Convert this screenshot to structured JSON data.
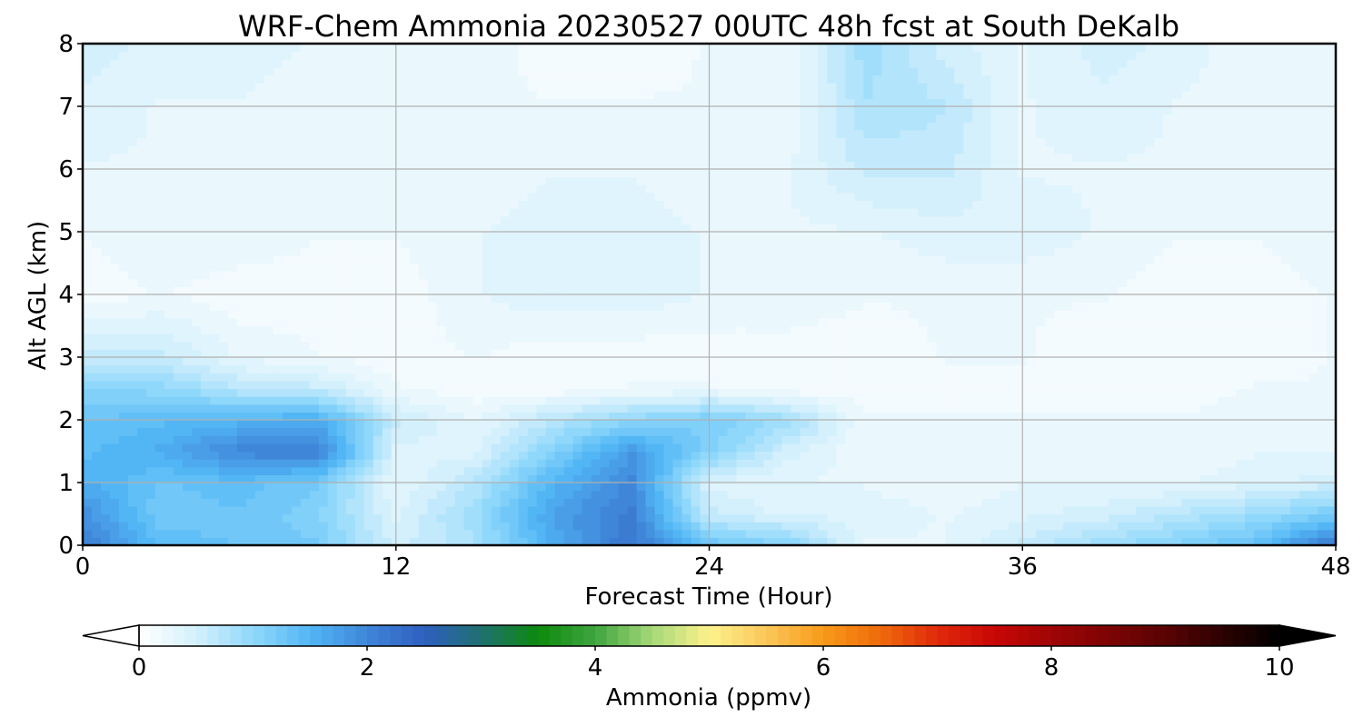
{
  "chart_data": {
    "type": "heatmap",
    "title": "WRF-Chem Ammonia  20230527 00UTC 48h fcst at South DeKalb",
    "xlabel": "Forecast Time (Hour)",
    "ylabel": "Alt AGL (km)",
    "xlim": [
      0,
      48
    ],
    "ylim": [
      0,
      8
    ],
    "xticks": [
      "0",
      "12",
      "24",
      "36",
      "48"
    ],
    "yticks": [
      "0",
      "1",
      "2",
      "3",
      "4",
      "5",
      "6",
      "7",
      "8"
    ],
    "grid": true,
    "colorbar": {
      "label": "Ammonia  (ppmv)",
      "range": [
        0,
        10
      ],
      "ticks": [
        "0",
        "2",
        "4",
        "6",
        "8",
        "10"
      ],
      "extend": "both",
      "stops": [
        {
          "v": 0,
          "c": "#ffffff"
        },
        {
          "v": 0.5,
          "c": "#d4f0fc"
        },
        {
          "v": 1.0,
          "c": "#8fd8fb"
        },
        {
          "v": 1.5,
          "c": "#52b6f5"
        },
        {
          "v": 2.0,
          "c": "#3f86d8"
        },
        {
          "v": 2.5,
          "c": "#2f5fc0"
        },
        {
          "v": 3.0,
          "c": "#1f7070"
        },
        {
          "v": 3.5,
          "c": "#0d8a0d"
        },
        {
          "v": 4.0,
          "c": "#3fa53f"
        },
        {
          "v": 4.5,
          "c": "#a6d879"
        },
        {
          "v": 5.0,
          "c": "#fdf28c"
        },
        {
          "v": 5.5,
          "c": "#fbc75a"
        },
        {
          "v": 6.0,
          "c": "#f89a1a"
        },
        {
          "v": 6.5,
          "c": "#ef6a0c"
        },
        {
          "v": 7.0,
          "c": "#e02a0a"
        },
        {
          "v": 7.5,
          "c": "#c90606"
        },
        {
          "v": 8.0,
          "c": "#a00505"
        },
        {
          "v": 9.0,
          "c": "#5a0303"
        },
        {
          "v": 10.0,
          "c": "#000000"
        }
      ],
      "under_color": "#ffffff",
      "over_color": "#000000"
    },
    "x": [
      0,
      3,
      6,
      9,
      12,
      15,
      18,
      21,
      24,
      27,
      30,
      33,
      36,
      39,
      42,
      45,
      48
    ],
    "y": [
      0,
      0.5,
      1,
      1.5,
      2,
      2.5,
      3,
      4,
      5,
      6,
      7,
      8
    ],
    "z": [
      [
        2.1,
        1.4,
        1.3,
        1.2,
        0.5,
        0.8,
        1.6,
        2.2,
        1.3,
        1.1,
        0.3,
        0.3,
        0.6,
        0.9,
        1.1,
        1.4,
        2.2
      ],
      [
        1.9,
        1.2,
        1.3,
        1.1,
        0.4,
        0.9,
        1.7,
        2.1,
        0.6,
        0.4,
        0.4,
        0.3,
        0.4,
        0.5,
        0.7,
        0.9,
        1.2
      ],
      [
        1.6,
        1.3,
        1.4,
        1.2,
        0.3,
        0.7,
        1.5,
        2.0,
        0.4,
        0.3,
        0.3,
        0.2,
        0.3,
        0.3,
        0.3,
        0.4,
        0.5
      ],
      [
        1.4,
        1.6,
        2.0,
        2.1,
        0.4,
        0.4,
        1.1,
        1.8,
        1.1,
        0.5,
        0.2,
        0.2,
        0.3,
        0.2,
        0.2,
        0.3,
        0.3
      ],
      [
        1.3,
        1.4,
        1.5,
        1.6,
        0.6,
        0.3,
        0.7,
        1.0,
        1.2,
        0.9,
        0.2,
        0.2,
        0.2,
        0.2,
        0.2,
        0.3,
        0.3
      ],
      [
        1.1,
        1.0,
        0.7,
        0.6,
        0.2,
        0.1,
        0.1,
        0.2,
        0.2,
        0.1,
        0.1,
        0.1,
        0.1,
        0.1,
        0.1,
        0.2,
        0.2
      ],
      [
        0.6,
        0.6,
        0.3,
        0.2,
        0.1,
        0.2,
        0.1,
        0.1,
        0.1,
        0.1,
        0.1,
        0.2,
        0.2,
        0.1,
        0.1,
        0.1,
        0.2
      ],
      [
        0.1,
        0.2,
        0.1,
        0.1,
        0.1,
        0.3,
        0.4,
        0.4,
        0.3,
        0.3,
        0.2,
        0.2,
        0.2,
        0.2,
        0.1,
        0.1,
        0.2
      ],
      [
        0.2,
        0.3,
        0.3,
        0.2,
        0.2,
        0.3,
        0.4,
        0.4,
        0.3,
        0.3,
        0.3,
        0.4,
        0.4,
        0.3,
        0.2,
        0.2,
        0.3
      ],
      [
        0.3,
        0.3,
        0.3,
        0.3,
        0.2,
        0.2,
        0.3,
        0.3,
        0.2,
        0.3,
        0.6,
        0.6,
        0.3,
        0.3,
        0.3,
        0.2,
        0.3
      ],
      [
        0.4,
        0.3,
        0.3,
        0.2,
        0.2,
        0.2,
        0.2,
        0.2,
        0.2,
        0.2,
        0.8,
        0.7,
        0.3,
        0.4,
        0.3,
        0.2,
        0.3
      ],
      [
        0.5,
        0.4,
        0.4,
        0.3,
        0.3,
        0.3,
        0.1,
        0.1,
        0.2,
        0.2,
        0.9,
        0.5,
        0.3,
        0.5,
        0.4,
        0.2,
        0.3
      ]
    ]
  }
}
